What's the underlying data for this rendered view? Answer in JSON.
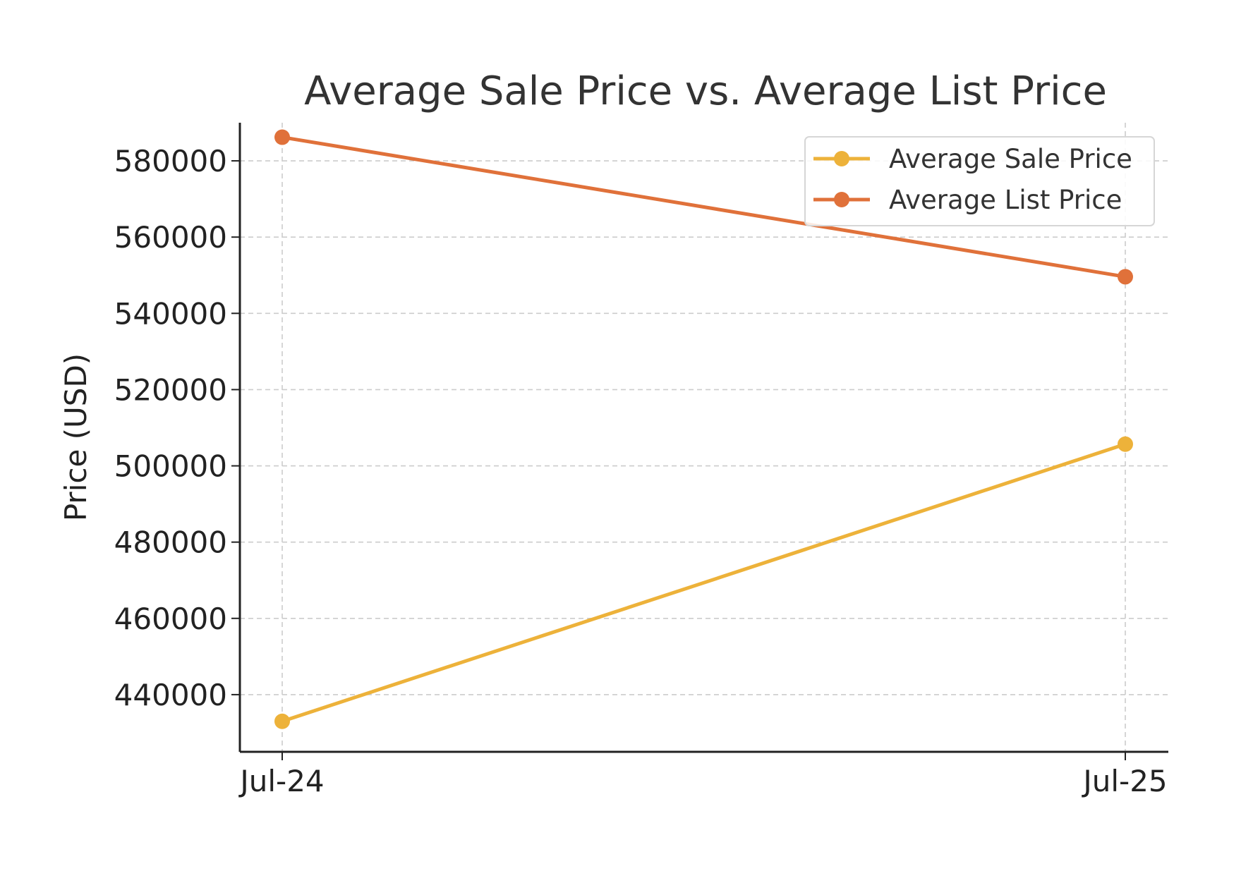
{
  "chart_data": {
    "type": "line",
    "title": "Average Sale Price vs. Average List Price",
    "xlabel": "",
    "ylabel": "Price (USD)",
    "categories": [
      "Jul-24",
      "Jul-25"
    ],
    "ylim": [
      425000,
      590000
    ],
    "yticks": [
      440000,
      460000,
      480000,
      500000,
      520000,
      540000,
      560000,
      580000
    ],
    "grid": true,
    "legend_position": "top-right",
    "series": [
      {
        "name": "Average Sale Price",
        "values": [
          433000,
          505700
        ],
        "color": "#EDB23A"
      },
      {
        "name": "Average List Price",
        "values": [
          586200,
          549600
        ],
        "color": "#E0713A"
      }
    ]
  }
}
